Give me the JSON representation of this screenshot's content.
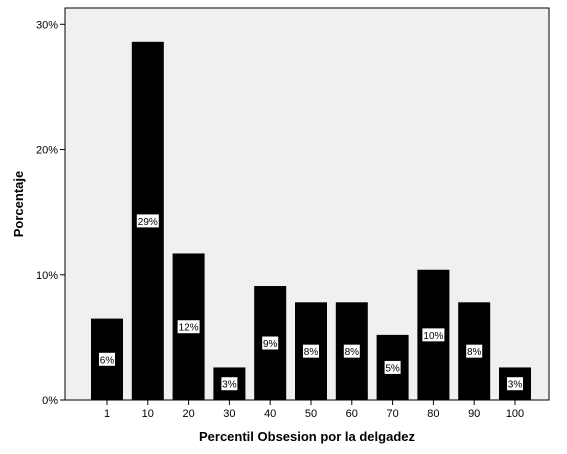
{
  "chart_data": {
    "type": "bar",
    "categories": [
      "1",
      "10",
      "20",
      "30",
      "40",
      "50",
      "60",
      "70",
      "80",
      "90",
      "100"
    ],
    "values": [
      6.5,
      28.6,
      11.7,
      2.6,
      9.1,
      7.8,
      7.8,
      5.2,
      10.4,
      7.8,
      2.6
    ],
    "data_labels": [
      "6%",
      "29%",
      "12%",
      "3%",
      "9%",
      "8%",
      "8%",
      "5%",
      "10%",
      "8%",
      "3%"
    ],
    "title": "",
    "xlabel": "Percentil Obsesion por la delgadez",
    "ylabel": "Porcentaje",
    "ylim": [
      0,
      30
    ],
    "yticks": [
      0,
      10,
      20,
      30
    ],
    "ytick_labels": [
      "0%",
      "10%",
      "20%",
      "30%"
    ],
    "grid": false,
    "legend": "none",
    "colors": {
      "plot_background": "#f0f0f0",
      "bar_fill": "#000000",
      "label_box": "#ffffff",
      "frame": "#000000"
    }
  }
}
